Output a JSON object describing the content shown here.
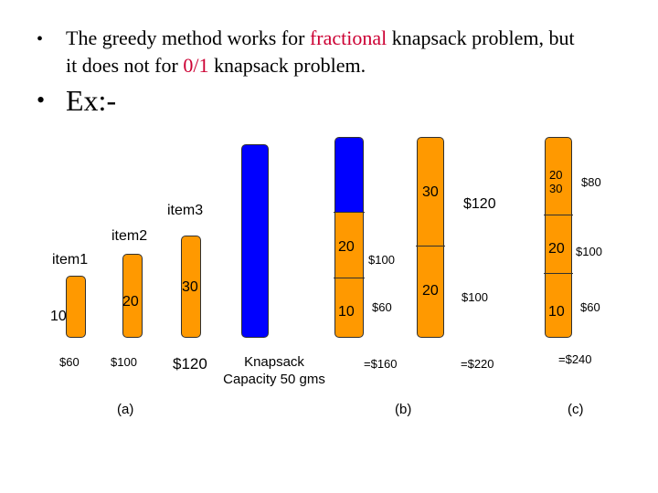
{
  "slide": {
    "bullet1": {
      "text_before": "The greedy method works for ",
      "highlight1": "fractional",
      "text_mid": " knapsack problem, but",
      "line2_before": "it does not for ",
      "highlight2": "0/1",
      "text_after": " knapsack problem."
    },
    "bullet2": "Ex:-"
  },
  "colors": {
    "item": "#ff9900",
    "knapsack": "#0000ff",
    "highlight": "#cc0033"
  },
  "panel_a": {
    "items": [
      {
        "name": "item1",
        "weight": "10",
        "value": "$60"
      },
      {
        "name": "item2",
        "weight": "20",
        "value": "$100"
      },
      {
        "name": "item3",
        "weight": "30",
        "value": "$120"
      }
    ],
    "caption": "(a)"
  },
  "knapsack": {
    "line1": "Knapsack",
    "line2": "Capacity 50 gms"
  },
  "panel_b": {
    "option1": {
      "segments": [
        {
          "weight": "20",
          "value": "$100"
        },
        {
          "weight": "10",
          "value": "$60"
        }
      ],
      "total": "=$160"
    },
    "option2": {
      "segments": [
        {
          "weight": "30",
          "value": "$120"
        },
        {
          "weight": "20",
          "value": "$100"
        }
      ],
      "total": "=$220"
    },
    "caption": "(b)"
  },
  "panel_c": {
    "fraction_num": "20",
    "fraction_den": "30",
    "segments": [
      {
        "weight": "20",
        "value": "$100"
      },
      {
        "weight": "10",
        "value": "$60"
      }
    ],
    "fraction_value": "$80",
    "total": "=$240",
    "caption": "(c)"
  }
}
